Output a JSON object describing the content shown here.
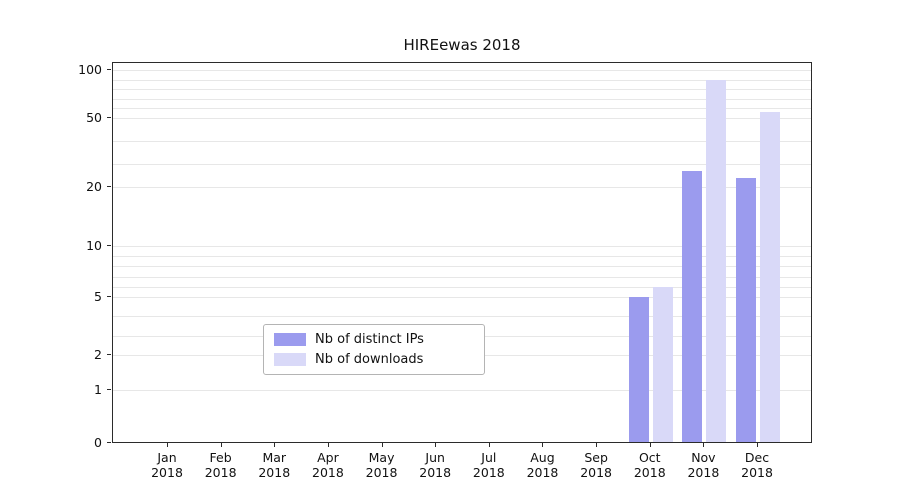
{
  "chart_data": {
    "type": "bar",
    "title": "HIREewas 2018",
    "year": "2018",
    "months": [
      "Jan",
      "Feb",
      "Mar",
      "Apr",
      "May",
      "Jun",
      "Jul",
      "Aug",
      "Sep",
      "Oct",
      "Nov",
      "Dec"
    ],
    "series": [
      {
        "name": "Nb of distinct IPs",
        "color": "#9b9bee",
        "values": [
          0,
          0,
          0,
          0,
          0,
          0,
          0,
          0,
          0,
          5,
          27,
          24
        ]
      },
      {
        "name": "Nb of downloads",
        "color": "#d9d9f8",
        "values": [
          0,
          0,
          0,
          0,
          0,
          0,
          0,
          0,
          0,
          6,
          90,
          56
        ]
      }
    ],
    "yticks": [
      0,
      1,
      2,
      5,
      10,
      20,
      50,
      100
    ],
    "gridline_values": [
      1,
      2,
      3,
      4,
      5,
      6,
      7,
      8,
      9,
      10,
      20,
      30,
      40,
      50,
      60,
      70,
      80,
      90,
      100
    ],
    "ylim": [
      0,
      100
    ],
    "scale": "log-like",
    "grid": true,
    "legend_position": "bottom-center"
  }
}
